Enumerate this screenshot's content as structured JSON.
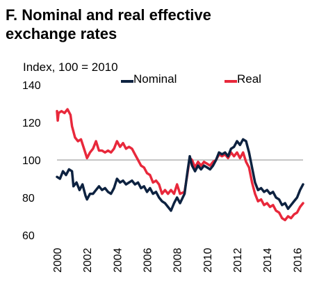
{
  "title_lines": [
    "F. Nominal and real effective",
    "exchange rates"
  ],
  "chart_data": {
    "type": "line",
    "ylabel": "Index, 100 = 2010",
    "xlim": [
      2000,
      2016.4
    ],
    "ylim": [
      60,
      140
    ],
    "yticks": [
      "140",
      "120",
      "100",
      "80",
      "60"
    ],
    "xticks": [
      "2000",
      "2002",
      "2004",
      "2006",
      "2008",
      "2010",
      "2012",
      "2014",
      "2016"
    ],
    "reference_line": 100,
    "grid": false,
    "legend_position": "top-right",
    "series": [
      {
        "name": "Nominal",
        "color": "#0d2240",
        "points": [
          [
            2000.0,
            91
          ],
          [
            2000.2,
            90
          ],
          [
            2000.4,
            94
          ],
          [
            2000.6,
            92
          ],
          [
            2000.8,
            95
          ],
          [
            2001.0,
            94
          ],
          [
            2001.1,
            86
          ],
          [
            2001.3,
            88
          ],
          [
            2001.5,
            84
          ],
          [
            2001.7,
            87
          ],
          [
            2001.9,
            81
          ],
          [
            2002.0,
            79
          ],
          [
            2002.2,
            82
          ],
          [
            2002.4,
            82
          ],
          [
            2002.6,
            84
          ],
          [
            2002.8,
            86
          ],
          [
            2003.0,
            84
          ],
          [
            2003.2,
            85
          ],
          [
            2003.4,
            83
          ],
          [
            2003.6,
            82
          ],
          [
            2003.8,
            85
          ],
          [
            2004.0,
            90
          ],
          [
            2004.2,
            88
          ],
          [
            2004.4,
            89
          ],
          [
            2004.6,
            87
          ],
          [
            2004.8,
            88
          ],
          [
            2005.0,
            89
          ],
          [
            2005.2,
            87
          ],
          [
            2005.4,
            88
          ],
          [
            2005.6,
            85
          ],
          [
            2005.8,
            86
          ],
          [
            2006.0,
            83
          ],
          [
            2006.2,
            85
          ],
          [
            2006.4,
            82
          ],
          [
            2006.6,
            83
          ],
          [
            2006.8,
            80
          ],
          [
            2007.0,
            78
          ],
          [
            2007.2,
            77
          ],
          [
            2007.4,
            75
          ],
          [
            2007.6,
            73
          ],
          [
            2007.8,
            77
          ],
          [
            2008.0,
            80
          ],
          [
            2008.2,
            77
          ],
          [
            2008.5,
            82
          ],
          [
            2008.7,
            94
          ],
          [
            2008.85,
            102
          ],
          [
            2009.0,
            97
          ],
          [
            2009.2,
            94
          ],
          [
            2009.4,
            97
          ],
          [
            2009.6,
            95
          ],
          [
            2009.8,
            97
          ],
          [
            2010.0,
            96
          ],
          [
            2010.2,
            95
          ],
          [
            2010.4,
            97
          ],
          [
            2010.6,
            100
          ],
          [
            2010.8,
            104
          ],
          [
            2011.0,
            103
          ],
          [
            2011.2,
            104
          ],
          [
            2011.4,
            102
          ],
          [
            2011.6,
            106
          ],
          [
            2011.8,
            107
          ],
          [
            2012.0,
            110
          ],
          [
            2012.2,
            108
          ],
          [
            2012.4,
            111
          ],
          [
            2012.6,
            110
          ],
          [
            2012.8,
            104
          ],
          [
            2013.0,
            96
          ],
          [
            2013.2,
            88
          ],
          [
            2013.4,
            84
          ],
          [
            2013.6,
            85
          ],
          [
            2013.8,
            83
          ],
          [
            2014.0,
            84
          ],
          [
            2014.2,
            82
          ],
          [
            2014.4,
            83
          ],
          [
            2014.6,
            80
          ],
          [
            2014.8,
            79
          ],
          [
            2015.0,
            76
          ],
          [
            2015.2,
            77
          ],
          [
            2015.4,
            74
          ],
          [
            2015.6,
            76
          ],
          [
            2015.8,
            78
          ],
          [
            2016.0,
            80
          ],
          [
            2016.2,
            84
          ],
          [
            2016.4,
            87
          ]
        ]
      },
      {
        "name": "Real",
        "color": "#e8283b",
        "points": [
          [
            2000.0,
            126
          ],
          [
            2000.05,
            121
          ],
          [
            2000.1,
            125
          ],
          [
            2000.3,
            126
          ],
          [
            2000.5,
            125
          ],
          [
            2000.7,
            127
          ],
          [
            2000.9,
            124
          ],
          [
            2001.0,
            118
          ],
          [
            2001.2,
            112
          ],
          [
            2001.4,
            110
          ],
          [
            2001.6,
            111
          ],
          [
            2001.8,
            106
          ],
          [
            2002.0,
            101
          ],
          [
            2002.2,
            104
          ],
          [
            2002.4,
            106
          ],
          [
            2002.6,
            110
          ],
          [
            2002.8,
            105
          ],
          [
            2003.0,
            105
          ],
          [
            2003.2,
            104
          ],
          [
            2003.4,
            105
          ],
          [
            2003.6,
            104
          ],
          [
            2003.8,
            106
          ],
          [
            2004.0,
            110
          ],
          [
            2004.2,
            107
          ],
          [
            2004.4,
            109
          ],
          [
            2004.6,
            106
          ],
          [
            2004.8,
            107
          ],
          [
            2005.0,
            106
          ],
          [
            2005.2,
            103
          ],
          [
            2005.4,
            100
          ],
          [
            2005.6,
            97
          ],
          [
            2005.8,
            96
          ],
          [
            2006.0,
            93
          ],
          [
            2006.2,
            92
          ],
          [
            2006.4,
            88
          ],
          [
            2006.6,
            89
          ],
          [
            2006.8,
            87
          ],
          [
            2007.0,
            82
          ],
          [
            2007.2,
            84
          ],
          [
            2007.4,
            82
          ],
          [
            2007.6,
            84
          ],
          [
            2007.8,
            82
          ],
          [
            2008.0,
            87
          ],
          [
            2008.2,
            82
          ],
          [
            2008.5,
            83
          ],
          [
            2008.7,
            93
          ],
          [
            2008.85,
            101
          ],
          [
            2009.0,
            100
          ],
          [
            2009.2,
            96
          ],
          [
            2009.4,
            99
          ],
          [
            2009.6,
            97
          ],
          [
            2009.8,
            99
          ],
          [
            2010.0,
            98
          ],
          [
            2010.2,
            97
          ],
          [
            2010.4,
            99
          ],
          [
            2010.6,
            100
          ],
          [
            2010.8,
            103
          ],
          [
            2011.0,
            102
          ],
          [
            2011.2,
            103
          ],
          [
            2011.4,
            101
          ],
          [
            2011.6,
            104
          ],
          [
            2011.8,
            102
          ],
          [
            2012.0,
            104
          ],
          [
            2012.2,
            101
          ],
          [
            2012.4,
            104
          ],
          [
            2012.6,
            99
          ],
          [
            2012.8,
            96
          ],
          [
            2013.0,
            88
          ],
          [
            2013.2,
            82
          ],
          [
            2013.4,
            78
          ],
          [
            2013.6,
            79
          ],
          [
            2013.8,
            76
          ],
          [
            2014.0,
            77
          ],
          [
            2014.2,
            75
          ],
          [
            2014.4,
            76
          ],
          [
            2014.6,
            73
          ],
          [
            2014.8,
            72
          ],
          [
            2015.0,
            69
          ],
          [
            2015.2,
            68
          ],
          [
            2015.4,
            70
          ],
          [
            2015.6,
            69
          ],
          [
            2015.8,
            71
          ],
          [
            2016.0,
            72
          ],
          [
            2016.2,
            75
          ],
          [
            2016.4,
            77
          ]
        ]
      }
    ]
  }
}
